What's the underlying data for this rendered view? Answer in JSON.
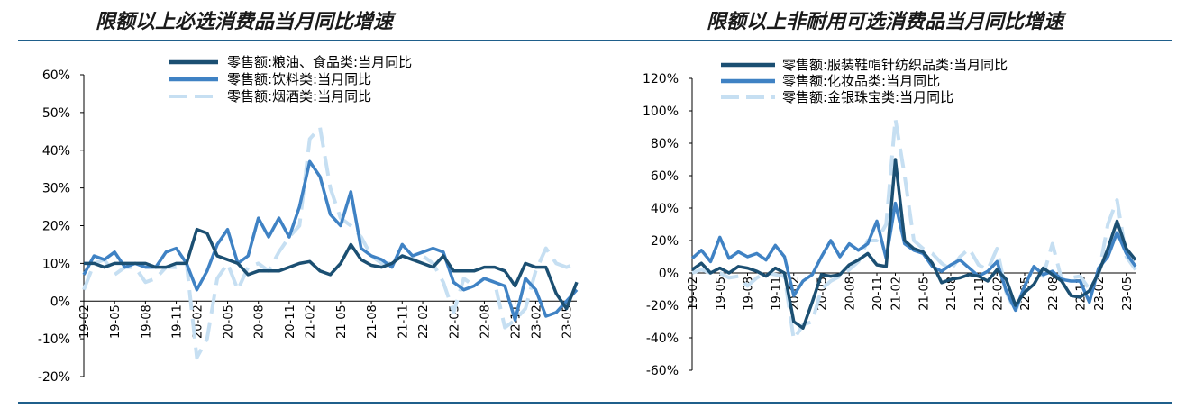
{
  "chart_data": [
    {
      "type": "line",
      "title": "限额以上必选消费品当月同比增速",
      "xlabel": "",
      "ylabel": "",
      "ylim": [
        -20,
        60
      ],
      "y_ticks": [
        "60%",
        "50%",
        "40%",
        "30%",
        "20%",
        "10%",
        "0%",
        "-10%",
        "-20%"
      ],
      "x_tick_labels": [
        "19-02",
        "19-05",
        "19-08",
        "19-11",
        "20-02",
        "20-05",
        "20-08",
        "20-11",
        "21-02",
        "21-05",
        "21-08",
        "21-11",
        "22-02",
        "22-05",
        "22-08",
        "22-11",
        "23-02",
        "23-05"
      ],
      "x": [
        "19-02",
        "19-03",
        "19-04",
        "19-05",
        "19-06",
        "19-07",
        "19-08",
        "19-09",
        "19-10",
        "19-11",
        "19-12",
        "20-02",
        "20-03",
        "20-04",
        "20-05",
        "20-06",
        "20-07",
        "20-08",
        "20-09",
        "20-10",
        "20-11",
        "20-12",
        "21-02",
        "21-03",
        "21-04",
        "21-05",
        "21-06",
        "21-07",
        "21-08",
        "21-09",
        "21-10",
        "21-11",
        "21-12",
        "22-02",
        "22-03",
        "22-04",
        "22-05",
        "22-06",
        "22-07",
        "22-08",
        "22-09",
        "22-10",
        "22-11",
        "22-12",
        "23-02",
        "23-03",
        "23-04",
        "23-05",
        "23-06"
      ],
      "legend_position": "top",
      "grid": false,
      "series": [
        {
          "name": "零售额:粮油、食品类:当月同比",
          "color": "#1b4f72",
          "dash": "solid",
          "values": [
            10,
            10,
            9,
            10,
            10,
            10,
            10,
            9,
            9,
            10,
            10,
            19,
            18,
            12,
            11,
            10,
            7,
            8,
            8,
            8,
            9,
            10,
            10.5,
            8,
            7,
            10,
            15,
            11,
            9.5,
            9,
            10,
            12,
            11,
            10,
            9,
            12,
            8,
            8,
            8,
            9,
            9,
            8,
            4,
            10,
            9,
            9,
            2,
            -2,
            5
          ]
        },
        {
          "name": "零售额:饮料类:当月同比",
          "color": "#3f82c4",
          "dash": "solid",
          "values": [
            7,
            12,
            11,
            13,
            9,
            10,
            9,
            9,
            13,
            14,
            10,
            3,
            8,
            15,
            19,
            10,
            12,
            22,
            17,
            22,
            17,
            25,
            37,
            33,
            23,
            20,
            29,
            14,
            12,
            11,
            9,
            15,
            12,
            13,
            14,
            13,
            5,
            3,
            4,
            6,
            5,
            4,
            -5,
            6,
            3,
            -4,
            -3,
            0,
            3
          ]
        },
        {
          "name": "零售额:烟酒类:当月同比",
          "color": "#c6dff2",
          "dash": "dash",
          "values": [
            3,
            10,
            11,
            7,
            9,
            9,
            5,
            6,
            9,
            9,
            10,
            -15,
            -10,
            6,
            10,
            3,
            9,
            10,
            8,
            13,
            17,
            20,
            43,
            46,
            30,
            22,
            20,
            17,
            12,
            10,
            10,
            12,
            11,
            12,
            10,
            5,
            -3,
            6,
            4,
            6,
            5,
            -7,
            -5,
            -2,
            8,
            14,
            10,
            9,
            10
          ]
        }
      ]
    },
    {
      "type": "line",
      "title": "限额以上非耐用可选消费品当月同比增速",
      "xlabel": "",
      "ylabel": "",
      "ylim": [
        -60,
        120
      ],
      "y_ticks": [
        "120%",
        "100%",
        "80%",
        "60%",
        "40%",
        "20%",
        "0%",
        "-20%",
        "-40%",
        "-60%"
      ],
      "x_tick_labels": [
        "19-02",
        "19-05",
        "19-08",
        "19-11",
        "20-02",
        "20-05",
        "20-08",
        "20-11",
        "21-02",
        "21-05",
        "21-08",
        "21-11",
        "22-02",
        "22-05",
        "22-08",
        "22-11",
        "23-02",
        "23-05"
      ],
      "x": [
        "19-02",
        "19-03",
        "19-04",
        "19-05",
        "19-06",
        "19-07",
        "19-08",
        "19-09",
        "19-10",
        "19-11",
        "19-12",
        "20-02",
        "20-03",
        "20-04",
        "20-05",
        "20-06",
        "20-07",
        "20-08",
        "20-09",
        "20-10",
        "20-11",
        "20-12",
        "21-02",
        "21-03",
        "21-04",
        "21-05",
        "21-06",
        "21-07",
        "21-08",
        "21-09",
        "21-10",
        "21-11",
        "21-12",
        "22-02",
        "22-03",
        "22-04",
        "22-05",
        "22-06",
        "22-07",
        "22-08",
        "22-09",
        "22-10",
        "22-11",
        "22-12",
        "23-02",
        "23-03",
        "23-04",
        "23-05",
        "23-06"
      ],
      "legend_position": "top",
      "grid": false,
      "series": [
        {
          "name": "零售额:服装鞋帽针纺织品类:当月同比",
          "color": "#1b4f72",
          "dash": "solid",
          "values": [
            2,
            6,
            0,
            3,
            0,
            4,
            3,
            1,
            -2,
            3,
            0,
            -30,
            -34,
            -18,
            -1,
            -2,
            -1,
            5,
            8,
            12,
            5,
            4,
            70,
            20,
            15,
            13,
            6,
            -6,
            -4,
            -3,
            -1,
            -2,
            -5,
            2,
            -4,
            -20,
            -12,
            -7,
            3,
            -1,
            -5,
            -14,
            -15,
            -11,
            0,
            15,
            32,
            15,
            8
          ]
        },
        {
          "name": "零售额:化妆品类:当月同比",
          "color": "#3f82c4",
          "dash": "solid",
          "values": [
            9,
            14,
            7,
            22,
            9,
            13,
            10,
            12,
            8,
            17,
            10,
            -14,
            -5,
            -1,
            10,
            20,
            10,
            18,
            14,
            18,
            32,
            9,
            43,
            18,
            14,
            12,
            4,
            1,
            5,
            8,
            3,
            -2,
            1,
            7,
            -11,
            -23,
            -8,
            4,
            -1,
            1,
            -4,
            -5,
            -5,
            -18,
            3,
            10,
            25,
            12,
            4
          ]
        },
        {
          "name": "零售额:金银珠宝类:当月同比",
          "color": "#c6dff2",
          "dash": "dash",
          "values": [
            0,
            2,
            0,
            0,
            -3,
            -2,
            -8,
            -3,
            0,
            -1,
            -2,
            -41,
            -32,
            -30,
            -10,
            -5,
            -2,
            2,
            7,
            20,
            20,
            30,
            95,
            60,
            20,
            15,
            12,
            6,
            2,
            10,
            15,
            5,
            2,
            15,
            -12,
            -24,
            -8,
            4,
            -2,
            18,
            -4,
            -3,
            -2,
            -10,
            -1,
            30,
            45,
            10,
            2
          ]
        }
      ]
    }
  ]
}
